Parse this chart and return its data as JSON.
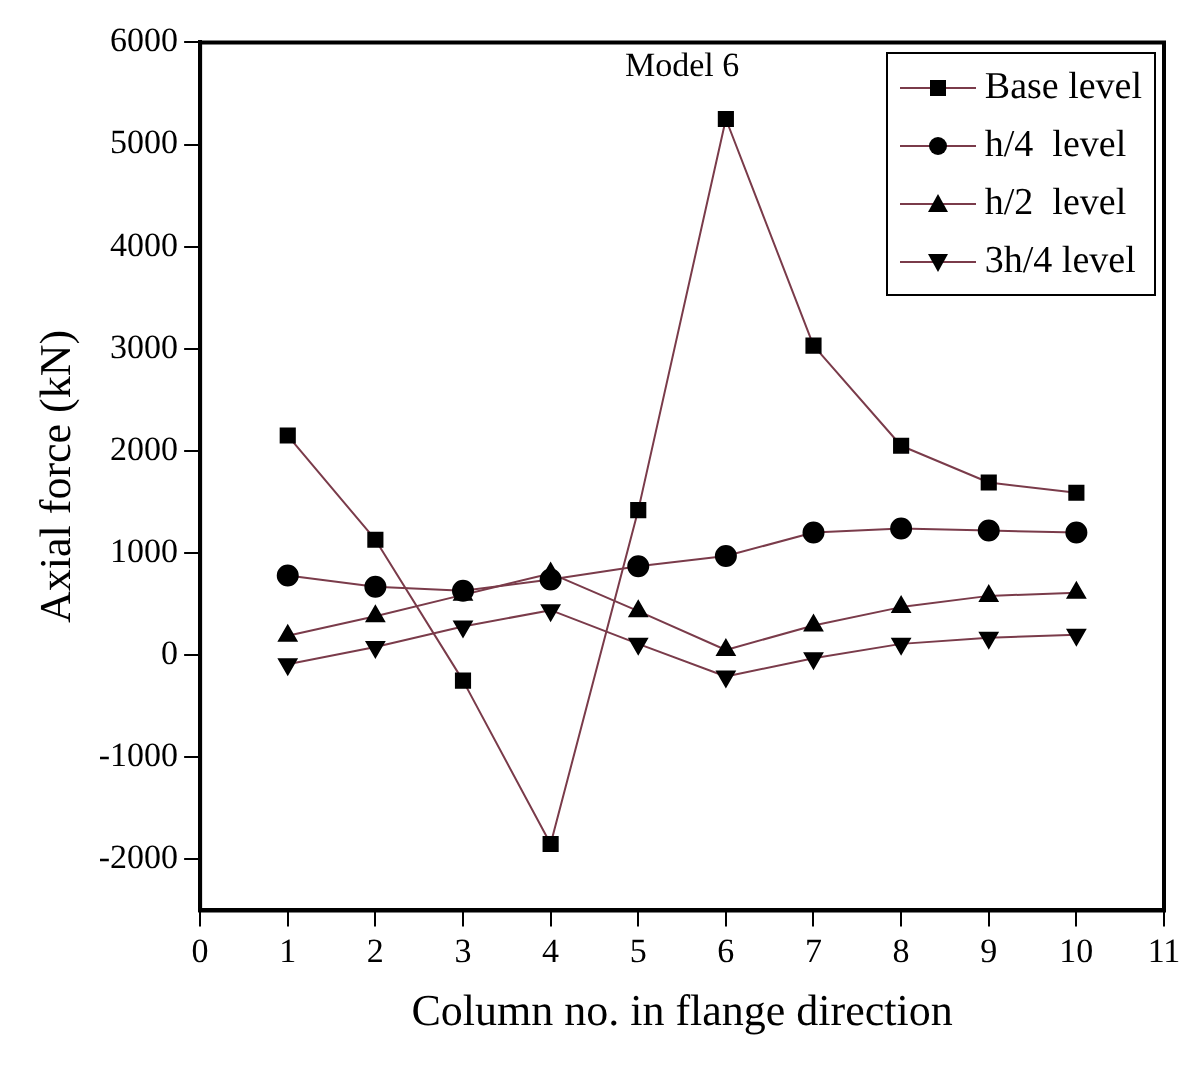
{
  "chart_data": {
    "type": "line",
    "xlabel": "Column no. in flange direction",
    "ylabel": "Axial force (kN)",
    "annotations": [
      "Model 6"
    ],
    "x": [
      1,
      2,
      3,
      4,
      5,
      6,
      7,
      8,
      9,
      10
    ],
    "series": [
      {
        "name": "Base level",
        "color": "#7a3b4a",
        "marker": "square",
        "values": [
          2150,
          1130,
          -250,
          -1850,
          1420,
          5250,
          3030,
          2050,
          1690,
          1590
        ]
      },
      {
        "name": "h/4  level",
        "color": "#7a3b4a",
        "marker": "circle",
        "values": [
          780,
          670,
          630,
          740,
          870,
          970,
          1200,
          1240,
          1220,
          1200
        ]
      },
      {
        "name": "h/2  level",
        "color": "#7a3b4a",
        "marker": "triangle",
        "values": [
          190,
          380,
          590,
          800,
          430,
          50,
          290,
          470,
          580,
          610
        ]
      },
      {
        "name": "3h/4 level",
        "color": "#7a3b4a",
        "marker": "triangle-down",
        "values": [
          -90,
          80,
          280,
          440,
          110,
          -210,
          -30,
          110,
          170,
          200
        ]
      }
    ],
    "xlim": [
      0,
      11
    ],
    "xticks": [
      0,
      1,
      2,
      3,
      4,
      5,
      6,
      7,
      8,
      9,
      10,
      11
    ],
    "ylim": [
      -2500,
      6000
    ],
    "yticks": [
      -2000,
      -1000,
      0,
      1000,
      2000,
      3000,
      4000,
      5000,
      6000
    ],
    "grid": false,
    "legend": "top right",
    "line_style": "solid"
  }
}
